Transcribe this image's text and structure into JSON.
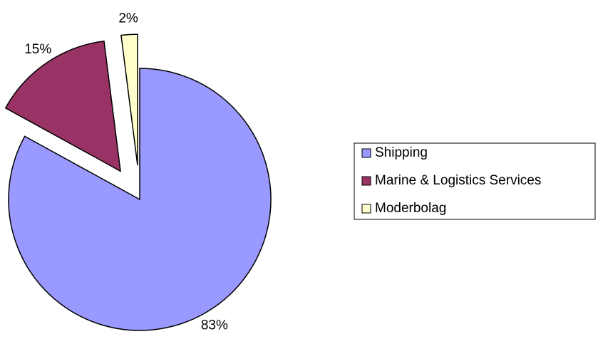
{
  "chart_data": {
    "type": "pie",
    "categories": [
      "Shipping",
      "Marine & Logistics Services",
      "Moderbolag"
    ],
    "values": [
      83,
      15,
      2
    ],
    "value_labels": [
      "83%",
      "15%",
      "2%"
    ],
    "colors": [
      "#9999ff",
      "#993366",
      "#ffffcc"
    ],
    "exploded": [
      false,
      true,
      true
    ],
    "legend": "right"
  }
}
